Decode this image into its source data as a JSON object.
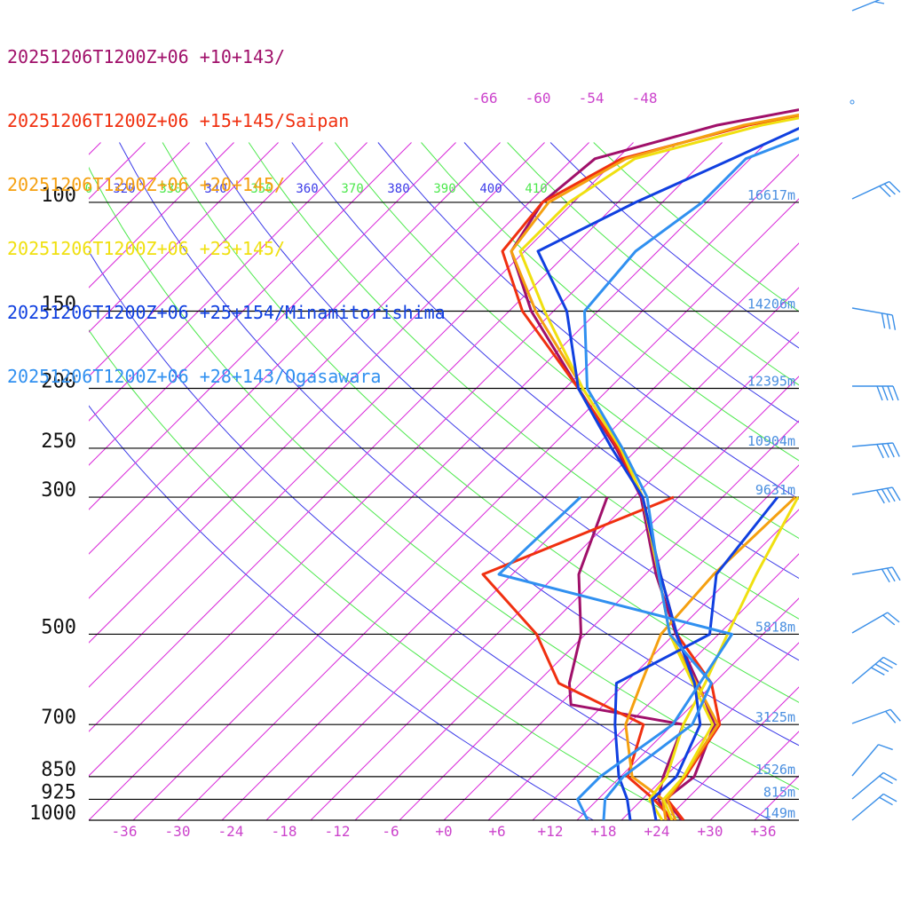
{
  "chart_data": {
    "type": "line",
    "legend": [
      {
        "label": "20251206T1200Z+06 +10+143/",
        "color": "#a0106a"
      },
      {
        "label": "20251206T1200Z+06 +15+145/Saipan",
        "color": "#f03010"
      },
      {
        "label": "20251206T1200Z+06 +20+145/",
        "color": "#f5a010"
      },
      {
        "label": "20251206T1200Z+06 +23+145/",
        "color": "#f0e010"
      },
      {
        "label": "20251206T1200Z+06 +25+154/Minamitorishima",
        "color": "#1040e0"
      },
      {
        "label": "20251206T1200Z+06 +28+143/Ogasawara",
        "color": "#3090f0"
      }
    ],
    "pressure_labels": [
      "100",
      "150",
      "200",
      "250",
      "300",
      "500",
      "700",
      "850",
      "925",
      "1000"
    ],
    "height_labels": [
      {
        "p": 100,
        "text": "16617m"
      },
      {
        "p": 150,
        "text": "14206m"
      },
      {
        "p": 200,
        "text": "12395m"
      },
      {
        "p": 250,
        "text": "10904m"
      },
      {
        "p": 300,
        "text": "9631m"
      },
      {
        "p": 500,
        "text": "5818m"
      },
      {
        "p": 700,
        "text": "3125m"
      },
      {
        "p": 850,
        "text": "1526m"
      },
      {
        "p": 925,
        "text": "815m"
      },
      {
        "p": 1000,
        "text": "149m"
      }
    ],
    "temperature_ticks": [
      "-36",
      "-30",
      "-24",
      "-18",
      "-12",
      "-6",
      "+0",
      "+6",
      "+12",
      "+18",
      "+24",
      "+30",
      "+36"
    ],
    "upper_temp_labels": [
      "-66",
      "-60",
      "-54",
      "-48"
    ],
    "theta_labels": [
      "0",
      "320",
      "330",
      "340",
      "350",
      "360",
      "370",
      "380",
      "390",
      "400",
      "410"
    ],
    "xlim": [
      -40,
      40
    ],
    "ylim_hpa": [
      1000,
      100
    ],
    "series": [
      {
        "color": "#a0106a",
        "temperature": [
          [
            1000,
            26.8
          ],
          [
            925,
            22.6
          ],
          [
            850,
            23.3
          ],
          [
            700,
            19.7
          ],
          [
            600,
            13.2
          ],
          [
            500,
            5.2
          ],
          [
            400,
            -3.8
          ],
          [
            300,
            -14.2
          ],
          [
            250,
            -22.5
          ],
          [
            200,
            -33.5
          ],
          [
            150,
            -47.5
          ],
          [
            120,
            -56.5
          ],
          [
            100,
            -58.5
          ],
          [
            85,
            -57.5
          ],
          [
            75,
            -47.5
          ],
          [
            60,
            -18.5
          ],
          [
            50,
            -10.5
          ]
        ],
        "dewpoint": [
          [
            1000,
            25.5
          ],
          [
            925,
            21.8
          ],
          [
            850,
            19.8
          ],
          [
            700,
            16.2
          ],
          [
            650,
            1.3
          ],
          [
            600,
            -1.3
          ],
          [
            500,
            -5.5
          ],
          [
            400,
            -12.5
          ],
          [
            300,
            -18
          ]
        ]
      },
      {
        "color": "#f03010",
        "temperature": [
          [
            1000,
            27
          ],
          [
            925,
            22.8
          ],
          [
            850,
            22.3
          ],
          [
            700,
            20.3
          ],
          [
            600,
            14.7
          ],
          [
            500,
            5.3
          ],
          [
            400,
            -3.3
          ],
          [
            300,
            -14
          ],
          [
            250,
            -22.3
          ],
          [
            200,
            -33.5
          ],
          [
            150,
            -48.5
          ],
          [
            120,
            -57.5
          ],
          [
            100,
            -58.5
          ],
          [
            85,
            -54.5
          ],
          [
            75,
            -44
          ],
          [
            60,
            -16
          ],
          [
            50,
            -8
          ]
        ],
        "dewpoint": [
          [
            1000,
            25.8
          ],
          [
            925,
            21.3
          ],
          [
            850,
            15.8
          ],
          [
            700,
            11.7
          ],
          [
            600,
            -2.5
          ],
          [
            500,
            -10.5
          ],
          [
            400,
            -23.3
          ],
          [
            300,
            -10.5
          ]
        ]
      },
      {
        "color": "#f5a010",
        "temperature": [
          [
            1000,
            26.1
          ],
          [
            925,
            22.8
          ],
          [
            850,
            22.1
          ],
          [
            700,
            20.1
          ],
          [
            600,
            13
          ],
          [
            500,
            4.5
          ],
          [
            400,
            -3.5
          ],
          [
            300,
            -14
          ],
          [
            250,
            -22
          ],
          [
            200,
            -33
          ],
          [
            150,
            -47
          ],
          [
            120,
            -56.5
          ],
          [
            100,
            -57.8
          ],
          [
            85,
            -54
          ],
          [
            75,
            -44.5
          ],
          [
            60,
            -15
          ],
          [
            50,
            -9
          ]
        ],
        "dewpoint": [
          [
            1000,
            25
          ],
          [
            925,
            22.3
          ],
          [
            850,
            16.3
          ],
          [
            700,
            9.7
          ],
          [
            600,
            6.8
          ],
          [
            500,
            3.5
          ],
          [
            400,
            2.7
          ],
          [
            300,
            3.2
          ]
        ]
      },
      {
        "color": "#f0e010",
        "temperature": [
          [
            1000,
            25.7
          ],
          [
            925,
            22.4
          ],
          [
            850,
            22.1
          ],
          [
            700,
            19.5
          ],
          [
            600,
            12.6
          ],
          [
            500,
            4.5
          ],
          [
            400,
            -3.5
          ],
          [
            300,
            -14
          ],
          [
            250,
            -22
          ],
          [
            200,
            -33
          ],
          [
            150,
            -46
          ],
          [
            120,
            -55.5
          ],
          [
            100,
            -55.5
          ],
          [
            85,
            -53
          ],
          [
            75,
            -42.5
          ],
          [
            60,
            -14.5
          ],
          [
            50,
            -8
          ]
        ],
        "dewpoint": [
          [
            1000,
            24.6
          ],
          [
            925,
            20.8
          ],
          [
            850,
            20.2
          ],
          [
            700,
            16.2
          ],
          [
            600,
            14
          ],
          [
            500,
            11
          ],
          [
            400,
            7.5
          ],
          [
            300,
            3.5
          ]
        ]
      },
      {
        "color": "#1040e0",
        "temperature": [
          [
            1000,
            23.9
          ],
          [
            925,
            21.1
          ],
          [
            850,
            21.3
          ],
          [
            700,
            18.1
          ],
          [
            600,
            12.8
          ],
          [
            500,
            5.3
          ],
          [
            400,
            -3.3
          ],
          [
            300,
            -14
          ],
          [
            250,
            -23
          ],
          [
            200,
            -33.5
          ],
          [
            150,
            -43.5
          ],
          [
            120,
            -53.5
          ],
          [
            100,
            -48
          ],
          [
            85,
            -42
          ],
          [
            75,
            -37.5
          ],
          [
            60,
            -15
          ],
          [
            50,
            -7
          ]
        ],
        "dewpoint": [
          [
            1000,
            21
          ],
          [
            925,
            18.3
          ],
          [
            850,
            14.8
          ],
          [
            700,
            8.5
          ],
          [
            600,
            4
          ],
          [
            500,
            9
          ],
          [
            400,
            3
          ],
          [
            300,
            1.2
          ]
        ]
      },
      {
        "color": "#3090f0",
        "temperature": [
          [
            1000,
            18
          ],
          [
            925,
            15.8
          ],
          [
            850,
            15.3
          ],
          [
            700,
            17.2
          ],
          [
            600,
            14.7
          ],
          [
            500,
            4.5
          ],
          [
            400,
            -3.5
          ],
          [
            300,
            -13.5
          ],
          [
            250,
            -21.8
          ],
          [
            200,
            -32.5
          ],
          [
            150,
            -41.5
          ],
          [
            120,
            -42.5
          ],
          [
            100,
            -40.5
          ],
          [
            85,
            -40.5
          ],
          [
            75,
            -34.5
          ],
          [
            60,
            -17.5
          ],
          [
            50,
            -6.5
          ]
        ],
        "dewpoint": [
          [
            1000,
            16.2
          ],
          [
            925,
            12.7
          ],
          [
            850,
            12.7
          ],
          [
            700,
            15
          ],
          [
            500,
            11.5
          ],
          [
            400,
            -21.5
          ],
          [
            300,
            -21
          ]
        ]
      }
    ]
  }
}
